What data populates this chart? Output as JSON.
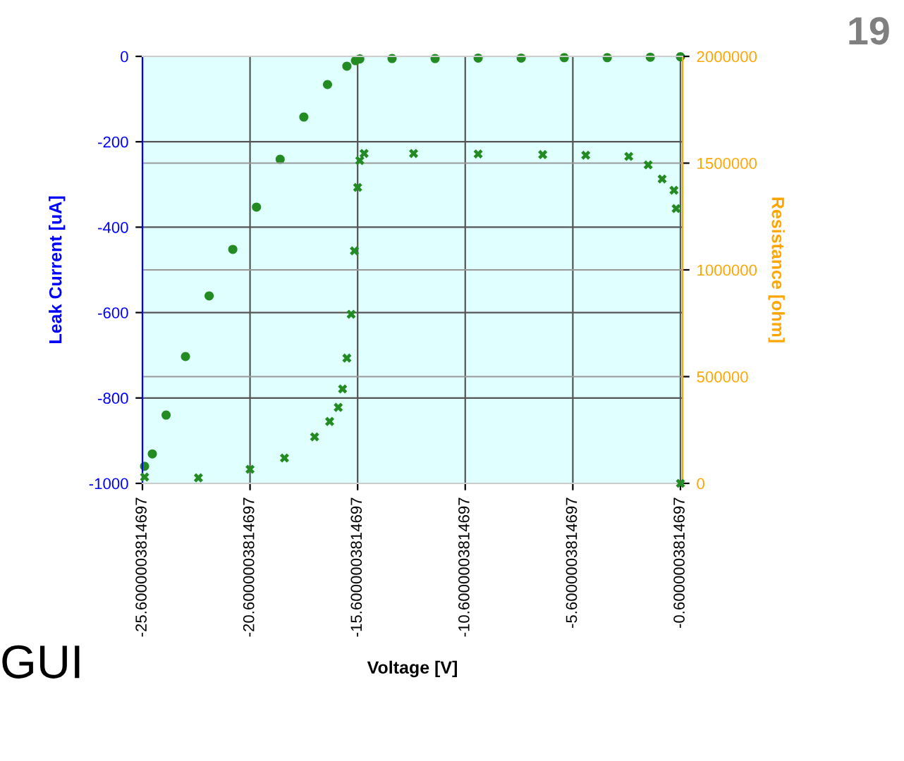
{
  "chart_data": {
    "type": "scatter",
    "xlabel": "Voltage [V]",
    "ylabel": "Leak Current [uA]",
    "y2label": "Resistance [ohm]",
    "annotations": [
      "19",
      "GUI"
    ],
    "xlim": [
      -25.6000003814697,
      -0.5
    ],
    "xticks": [
      -25.6000003814697,
      -20.6000003814697,
      -15.6000003814697,
      -10.6000003814697,
      -5.6000003814697,
      -0.6000003814697
    ],
    "ylim": [
      -1000,
      0
    ],
    "yticks": [
      -1000,
      -800,
      -600,
      -400,
      -200,
      0
    ],
    "y2lim": [
      0,
      2000000
    ],
    "y2ticks": [
      0,
      500000,
      1000000,
      1500000,
      2000000
    ],
    "grid": true,
    "series": [
      {
        "color": "#228b22",
        "marker": "circle",
        "x": [
          -25.5,
          -25.14,
          -24.5,
          -23.6,
          -22.5,
          -21.4,
          -20.3,
          -19.2,
          -18.1,
          -17.0,
          -16.1,
          -15.7,
          -15.5,
          -14,
          -12,
          -10,
          -8,
          -6,
          -4,
          -2,
          -0.6
        ],
        "values": [
          -960,
          -931,
          -840,
          -703,
          -561,
          -452,
          -353,
          -241,
          -142,
          -66,
          -23,
          -10,
          -6,
          -5,
          -5,
          -4,
          -4,
          -3,
          -3,
          -2,
          -1
        ]
      },
      {
        "color": "#228b22",
        "marker": "cross",
        "axis": "y2",
        "x": [
          -25.5,
          -23,
          -20.6,
          -19,
          -17.6,
          -16.9,
          -16.5,
          -16.3,
          -16.1,
          -15.9,
          -15.75,
          -15.6,
          -15.5,
          -15.3,
          -13,
          -10,
          -7,
          -5,
          -3,
          -2.1,
          -1.45,
          -0.9,
          -0.8,
          -0.6
        ],
        "values": [
          30000,
          26000,
          66000,
          119000,
          218000,
          290000,
          356000,
          442000,
          587000,
          792000,
          1089000,
          1386000,
          1512000,
          1545000,
          1545000,
          1543000,
          1540000,
          1537000,
          1531000,
          1492000,
          1426000,
          1373000,
          1287000,
          0
        ]
      }
    ]
  }
}
